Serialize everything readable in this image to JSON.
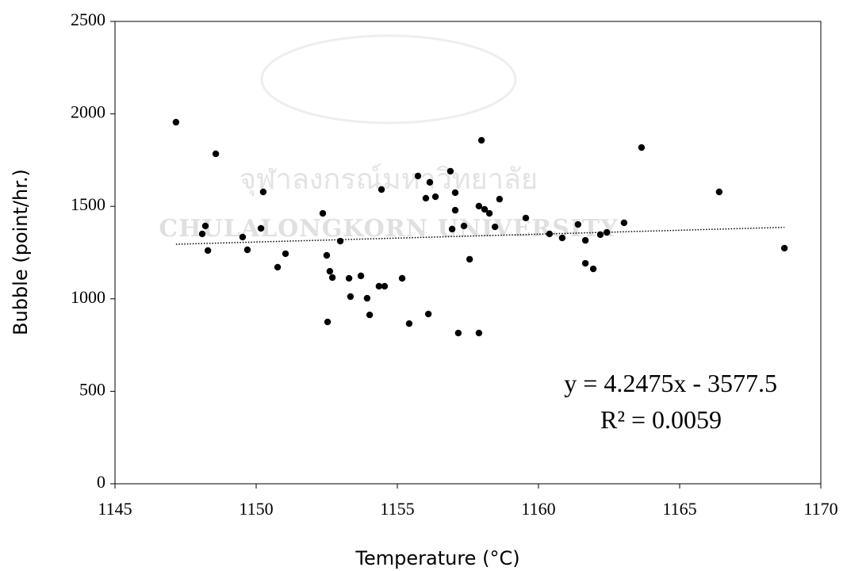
{
  "chart_data": {
    "type": "scatter",
    "x_label": "Temperature (°C)",
    "y_label": "Bubble (point/hr.)",
    "xlim": [
      1145,
      1170
    ],
    "xticks": [
      1145,
      1150,
      1155,
      1160,
      1165,
      1170
    ],
    "ylim": [
      0,
      2500
    ],
    "yticks": [
      0,
      500,
      1000,
      1500,
      2000,
      2500
    ],
    "color": "#000000",
    "watermark": [
      "จุฬาลงกรณ์มหาวิทยาลัย",
      "CHULALONGKORN UNIVERSITY"
    ],
    "trendline": {
      "slope": 4.2475,
      "intercept": -3577.5,
      "equation": "y = 4.2475x - 3577.5",
      "r2_label": "R² = 0.0059"
    },
    "x": [
      1147.16,
      1148.09,
      1148.2,
      1148.29,
      1148.57,
      1149.52,
      1149.69,
      1150.17,
      1150.25,
      1150.76,
      1151.04,
      1152.36,
      1152.5,
      1152.61,
      1152.7,
      1152.53,
      1152.98,
      1153.29,
      1153.34,
      1153.71,
      1153.93,
      1154.02,
      1154.35,
      1154.44,
      1154.55,
      1155.17,
      1155.42,
      1155.73,
      1156.01,
      1156.1,
      1156.15,
      1156.35,
      1156.88,
      1156.94,
      1157.05,
      1157.05,
      1157.16,
      1157.36,
      1157.56,
      1157.89,
      1157.89,
      1157.98,
      1158.09,
      1158.26,
      1158.46,
      1158.62,
      1159.55,
      1160.39,
      1160.84,
      1161.4,
      1161.66,
      1161.66,
      1161.94,
      1162.19,
      1162.42,
      1163.03,
      1163.65,
      1166.4,
      1168.71
    ],
    "values": [
      1955,
      1351,
      1394,
      1261,
      1784,
      1334,
      1265,
      1381,
      1578,
      1171,
      1244,
      1462,
      1235,
      1149,
      1115,
      875,
      1312,
      1111,
      1012,
      1124,
      1003,
      913,
      1068,
      1591,
      1068,
      1111,
      866,
      1664,
      1544,
      918,
      1630,
      1552,
      1690,
      1377,
      1574,
      1479,
      815,
      1394,
      1214,
      1501,
      815,
      1857,
      1484,
      1462,
      1389,
      1539,
      1437,
      1351,
      1329,
      1402,
      1316,
      1192,
      1162,
      1347,
      1359,
      1411,
      1818,
      1578,
      1274
    ]
  }
}
